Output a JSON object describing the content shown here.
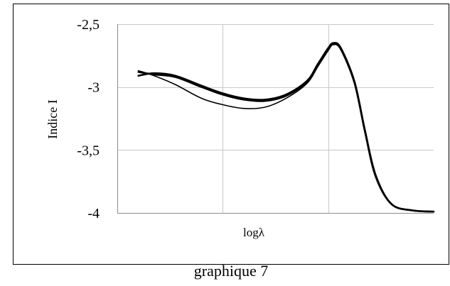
{
  "chart_data": {
    "type": "line",
    "title": "",
    "caption": "graphique 7",
    "xlabel": "logλ",
    "ylabel": "Indice I",
    "ylim": [
      -4,
      -2.5
    ],
    "yticks": [
      -2.5,
      -3,
      -3.5,
      -4
    ],
    "ytick_labels": [
      "-2,5",
      "-3",
      "-3,5",
      "-4"
    ],
    "xlim": [
      0,
      3
    ],
    "x_gridlines": [
      1,
      2
    ],
    "grid": true,
    "legend": "none",
    "line_color": "#000000",
    "grid_color": "#c8c8c8",
    "series": [
      {
        "x": [
          0.2,
          0.35,
          0.55,
          0.8,
          1.0,
          1.2,
          1.4,
          1.6,
          1.8,
          1.9,
          2.0,
          2.05,
          2.12,
          2.25,
          2.35,
          2.45,
          2.6,
          2.8,
          3.0
        ],
        "values": [
          -2.91,
          -2.89,
          -2.91,
          -2.99,
          -3.05,
          -3.09,
          -3.1,
          -3.06,
          -2.95,
          -2.82,
          -2.69,
          -2.65,
          -2.69,
          -2.96,
          -3.35,
          -3.7,
          -3.93,
          -3.98,
          -3.99
        ]
      },
      {
        "x": [
          0.2,
          0.35,
          0.55,
          0.8,
          1.0,
          1.2,
          1.4,
          1.6,
          1.8,
          1.9,
          2.0,
          2.05,
          2.12,
          2.25,
          2.35,
          2.45,
          2.6,
          2.8,
          3.0
        ],
        "values": [
          -2.88,
          -2.9,
          -2.92,
          -3.0,
          -3.06,
          -3.1,
          -3.11,
          -3.07,
          -2.96,
          -2.83,
          -2.7,
          -2.66,
          -2.7,
          -2.97,
          -3.36,
          -3.71,
          -3.93,
          -3.98,
          -3.99
        ]
      },
      {
        "x": [
          0.2,
          0.35,
          0.55,
          0.8,
          1.0,
          1.2,
          1.4,
          1.6,
          1.8,
          1.9,
          2.0,
          2.05,
          2.12,
          2.25,
          2.35,
          2.45,
          2.6,
          2.8,
          3.0
        ],
        "values": [
          -2.87,
          -2.91,
          -2.98,
          -3.09,
          -3.14,
          -3.17,
          -3.16,
          -3.09,
          -2.97,
          -2.84,
          -2.71,
          -2.66,
          -2.7,
          -2.97,
          -3.35,
          -3.7,
          -3.93,
          -3.98,
          -3.99
        ]
      }
    ]
  }
}
